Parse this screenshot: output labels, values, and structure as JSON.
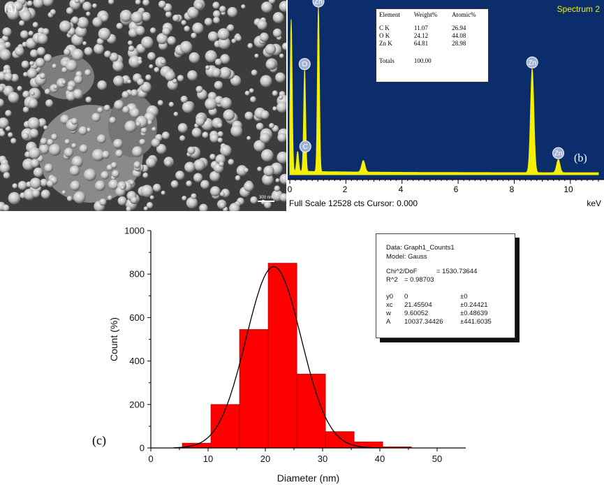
{
  "panel_a": {
    "letter": "(a)",
    "scale_label": "300 nm"
  },
  "panel_b": {
    "letter": "(b)",
    "spectrum_title": "Spectrum 2",
    "footer_left": "Full Scale 12528 cts Cursor: 0.000",
    "footer_right": "keV",
    "table": {
      "headers": [
        "Element",
        "Weight%",
        "Atomic%"
      ],
      "rows": [
        [
          "C K",
          "11.07",
          "26.94"
        ],
        [
          "O K",
          "24.12",
          "44.08"
        ],
        [
          "Zn K",
          "64.81",
          "28.98"
        ]
      ],
      "totals_label": "Totals",
      "totals_value": "100.00"
    },
    "peak_labels": [
      "C",
      "O",
      "Zn",
      "Zn",
      "Zn"
    ],
    "colors": {
      "background": "#0b2d6b",
      "spectrum": "#f4f000"
    }
  },
  "panel_c": {
    "letter": "(c)",
    "fit_box": {
      "data_line": "Data: Graph1_Counts1",
      "model_line": "Model: Gauss",
      "chi_label": "Chi^2/DoF",
      "chi_value": "= 1530.73644",
      "r2_label": "R^2",
      "r2_value": "= 0.98703",
      "params": [
        [
          "y0",
          "0",
          "±0"
        ],
        [
          "xc",
          "21.45504",
          "±0.24421"
        ],
        [
          "w",
          "9.60052",
          "±0.48639"
        ],
        [
          "A",
          "10037.34426",
          "±441.6035"
        ]
      ]
    }
  },
  "chart_data": [
    {
      "type": "line",
      "title": "Spectrum 2",
      "xlabel": "keV",
      "ylabel": "",
      "xlim": [
        0,
        11
      ],
      "x_ticks": [
        "0",
        "2",
        "4",
        "6",
        "8",
        "10"
      ],
      "peaks": [
        {
          "label": "C",
          "x": 0.28,
          "relative_height": 0.12
        },
        {
          "label": "O",
          "x": 0.53,
          "relative_height": 0.62
        },
        {
          "label": "Zn",
          "x": 1.02,
          "relative_height": 1.0
        },
        {
          "label": "Zn",
          "x": 8.64,
          "relative_height": 0.63
        },
        {
          "label": "Zn",
          "x": 9.57,
          "relative_height": 0.08
        }
      ],
      "minor_peaks": [
        {
          "x": 2.62,
          "relative_height": 0.07
        },
        {
          "x": 0.05,
          "relative_height": 0.92
        }
      ]
    },
    {
      "type": "bar",
      "xlabel": "Diameter (nm)",
      "ylabel": "Count (%)",
      "xlim": [
        0,
        55
      ],
      "ylim": [
        0,
        1000
      ],
      "x_ticks": [
        "0",
        "10",
        "20",
        "30",
        "40",
        "50"
      ],
      "y_ticks": [
        "0",
        "200",
        "400",
        "600",
        "800",
        "1000"
      ],
      "bin_width": 5,
      "bin_centers": [
        8,
        13,
        18,
        23,
        28,
        33,
        38,
        43
      ],
      "values": [
        22,
        200,
        545,
        850,
        340,
        75,
        28,
        5
      ],
      "fit": {
        "model": "Gauss",
        "y0": 0,
        "xc": 21.45504,
        "w": 9.60052,
        "A": 10037.34426
      },
      "colors": {
        "bar": "#ff0000",
        "bar_edge": "#b00000",
        "fit_line": "#000000"
      }
    }
  ]
}
